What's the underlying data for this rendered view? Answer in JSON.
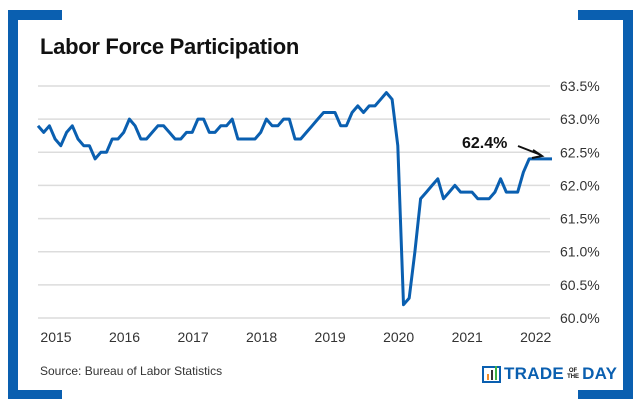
{
  "chart_data": {
    "type": "line",
    "title": "Labor Force Participation",
    "xlabel": "",
    "ylabel": "",
    "source": "Source: Bureau of Labor Statistics",
    "x_start": "2015-01",
    "frequency": "monthly",
    "x_tick_labels": [
      "2015",
      "2016",
      "2017",
      "2018",
      "2019",
      "2020",
      "2021",
      "2022"
    ],
    "y_tick_labels": [
      "63.5%",
      "63.0%",
      "62.5%",
      "62.0%",
      "61.5%",
      "61.0%",
      "60.5%",
      "60.0%"
    ],
    "ylim": [
      60.0,
      63.5
    ],
    "grid": true,
    "series": [
      {
        "name": "Labor Force Participation Rate",
        "color": "#0a5fb0",
        "values": [
          62.9,
          62.8,
          62.9,
          62.7,
          62.6,
          62.8,
          62.9,
          62.7,
          62.6,
          62.6,
          62.4,
          62.5,
          62.5,
          62.7,
          62.7,
          62.8,
          63.0,
          62.9,
          62.7,
          62.7,
          62.8,
          62.9,
          62.9,
          62.8,
          62.7,
          62.7,
          62.8,
          62.8,
          63.0,
          63.0,
          62.8,
          62.8,
          62.9,
          62.9,
          63.0,
          62.7,
          62.7,
          62.7,
          62.7,
          62.8,
          63.0,
          62.9,
          62.9,
          63.0,
          63.0,
          62.7,
          62.7,
          62.8,
          62.9,
          63.0,
          63.1,
          63.1,
          63.1,
          62.9,
          62.9,
          63.1,
          63.2,
          63.1,
          63.2,
          63.2,
          63.3,
          63.4,
          63.3,
          62.6,
          60.2,
          60.3,
          61.0,
          61.8,
          61.9,
          62.0,
          62.1,
          61.8,
          61.9,
          62.0,
          61.9,
          61.9,
          61.9,
          61.8,
          61.8,
          61.8,
          61.9,
          62.1,
          61.9,
          61.9,
          61.9,
          62.2,
          62.4,
          62.4,
          62.4,
          62.4,
          62.4
        ]
      }
    ],
    "annotation": {
      "text": "62.4%"
    }
  },
  "brand": {
    "logo_text_1": "TRADE",
    "logo_small_1": "OF",
    "logo_small_2": "THE",
    "logo_text_2": "DAY"
  },
  "colors": {
    "accent": "#0a5fb0"
  }
}
